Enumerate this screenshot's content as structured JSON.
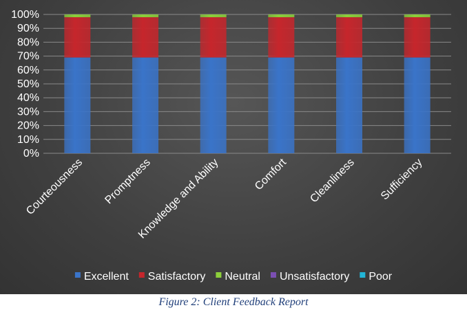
{
  "caption": "Figure 2: Client Feedback Report",
  "chart_data": {
    "type": "bar",
    "stacked": true,
    "categories": [
      "Courteousness",
      "Promptness",
      "Knowledge and Ability",
      "Comfort",
      "Cleanliness",
      "Sufficiency"
    ],
    "series": [
      {
        "name": "Excellent",
        "color": "#3a74c9",
        "values": [
          69,
          69,
          69,
          69,
          69,
          69
        ]
      },
      {
        "name": "Satisfactory",
        "color": "#c6262c",
        "values": [
          29,
          29,
          29,
          29,
          29,
          29
        ]
      },
      {
        "name": "Neutral",
        "color": "#8ccf3a",
        "values": [
          2,
          2,
          2,
          2,
          2,
          2
        ]
      },
      {
        "name": "Unsatisfactory",
        "color": "#7b4fb3",
        "values": [
          0,
          0,
          0,
          0,
          0,
          0
        ]
      },
      {
        "name": "Poor",
        "color": "#22b5d6",
        "values": [
          0,
          0,
          0,
          0,
          0,
          0
        ]
      }
    ],
    "yticks": [
      "0%",
      "10%",
      "20%",
      "30%",
      "40%",
      "50%",
      "60%",
      "70%",
      "80%",
      "90%",
      "100%"
    ],
    "ylim": [
      0,
      100
    ],
    "grid": true,
    "legend": "bottom"
  }
}
